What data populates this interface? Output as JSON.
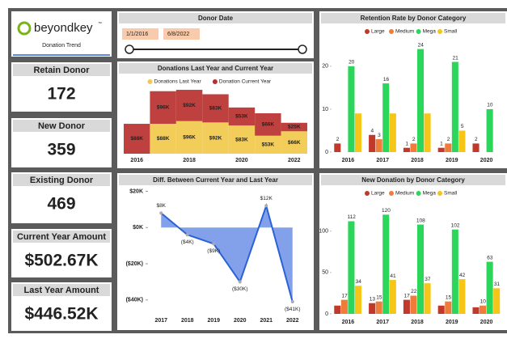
{
  "logo": {
    "brand": "beyondkey",
    "trademark": "™",
    "subtitle": "Donation Trend"
  },
  "cards": [
    {
      "title": "Retain Donor",
      "value": "172"
    },
    {
      "title": "New Donor",
      "value": "359"
    },
    {
      "title": "Existing Donor",
      "value": "469"
    },
    {
      "title": "Current Year Amount",
      "value": "$502.67K"
    },
    {
      "title": "Last Year Amount",
      "value": "$446.52K"
    }
  ],
  "slicer": {
    "title": "Donor Date",
    "start": "1/1/2016",
    "end": "6/8/2022"
  },
  "chart_data": [
    {
      "type": "ribbon",
      "title": "Donations Last Year and Current Year",
      "categories": [
        "2016",
        null,
        "2018",
        null,
        "2020",
        null,
        "2022"
      ],
      "series": [
        {
          "name": "Donations Last Year",
          "color": "#f2c94c",
          "values": [
            null,
            88,
            96,
            92,
            83,
            53,
            66
          ],
          "value_labels": [
            null,
            "$88K",
            "$96K",
            "$92K",
            "$83K",
            "$53K",
            "$66K"
          ]
        },
        {
          "name": "Donation Current Year",
          "color": "#b8312f",
          "values": [
            88,
            96,
            92,
            83,
            53,
            66,
            25
          ],
          "value_labels": [
            "$88K",
            "$96K",
            "$92K",
            "$83K",
            "$53K",
            "$66K",
            "$25K"
          ]
        }
      ],
      "legend": "top"
    },
    {
      "type": "area",
      "title": "Diff. Between Current Year and Last Year",
      "categories": [
        "2017",
        "2018",
        "2019",
        "2020",
        "2021",
        "2022"
      ],
      "values": [
        8,
        -4,
        -9,
        -30,
        12,
        -41
      ],
      "value_labels": [
        "$8K",
        "($4K)",
        "($9K)",
        "($30K)",
        "$12K",
        "($41K)"
      ],
      "color": "#6d8fe8",
      "line_color": "#2a62d6",
      "ylim": [
        -45,
        22
      ],
      "yticks": [
        {
          "value": 20,
          "label": "$20K"
        },
        {
          "value": 0,
          "label": "$0K"
        },
        {
          "value": -20,
          "label": "($20K)"
        },
        {
          "value": -40,
          "label": "($40K)"
        }
      ]
    },
    {
      "type": "bar",
      "title": "Retention Rate by Donor Category",
      "categories": [
        "2016",
        "2017",
        "2018",
        "2019",
        "2020"
      ],
      "series": [
        {
          "name": "Large",
          "color": "#c0392b",
          "values": [
            2,
            4,
            1,
            1,
            2
          ],
          "value_labels": [
            "2",
            "4",
            "1",
            "1",
            "2"
          ]
        },
        {
          "name": "Medium",
          "color": "#f07c3a",
          "values": [
            null,
            3,
            2,
            2,
            null
          ],
          "value_labels": [
            null,
            "3",
            "2",
            "2",
            null
          ]
        },
        {
          "name": "Mega",
          "color": "#2bd65a",
          "values": [
            20,
            16,
            24,
            21,
            10
          ],
          "value_labels": [
            "20",
            "16",
            "24",
            "21",
            "10"
          ]
        },
        {
          "name": "Small",
          "color": "#f5c518",
          "values": [
            9,
            9,
            9,
            5,
            null
          ],
          "value_labels": [
            null,
            null,
            null,
            "5",
            null
          ]
        }
      ],
      "ylim": [
        0,
        26
      ],
      "yticks": [
        0,
        10,
        20
      ],
      "legend": "top"
    },
    {
      "type": "bar",
      "title": "New Donation by Donor Category",
      "categories": [
        "2016",
        "2017",
        "2018",
        "2019",
        "2020"
      ],
      "series": [
        {
          "name": "Large",
          "color": "#c0392b",
          "values": [
            10,
            13,
            17,
            10,
            8
          ],
          "value_labels": [
            null,
            "13",
            "17",
            null,
            null
          ]
        },
        {
          "name": "Medium",
          "color": "#f07c3a",
          "values": [
            17,
            15,
            22,
            15,
            10
          ],
          "value_labels": [
            "17",
            "15",
            "22",
            "15",
            "10"
          ]
        },
        {
          "name": "Mega",
          "color": "#2bd65a",
          "values": [
            112,
            120,
            108,
            102,
            63
          ],
          "value_labels": [
            "112",
            "120",
            "108",
            "102",
            "63"
          ]
        },
        {
          "name": "Small",
          "color": "#f5c518",
          "values": [
            34,
            41,
            37,
            42,
            31
          ],
          "value_labels": [
            "34",
            "41",
            "37",
            "42",
            "31"
          ]
        }
      ],
      "ylim": [
        0,
        135
      ],
      "yticks": [
        0,
        50,
        100
      ],
      "legend": "top"
    }
  ]
}
